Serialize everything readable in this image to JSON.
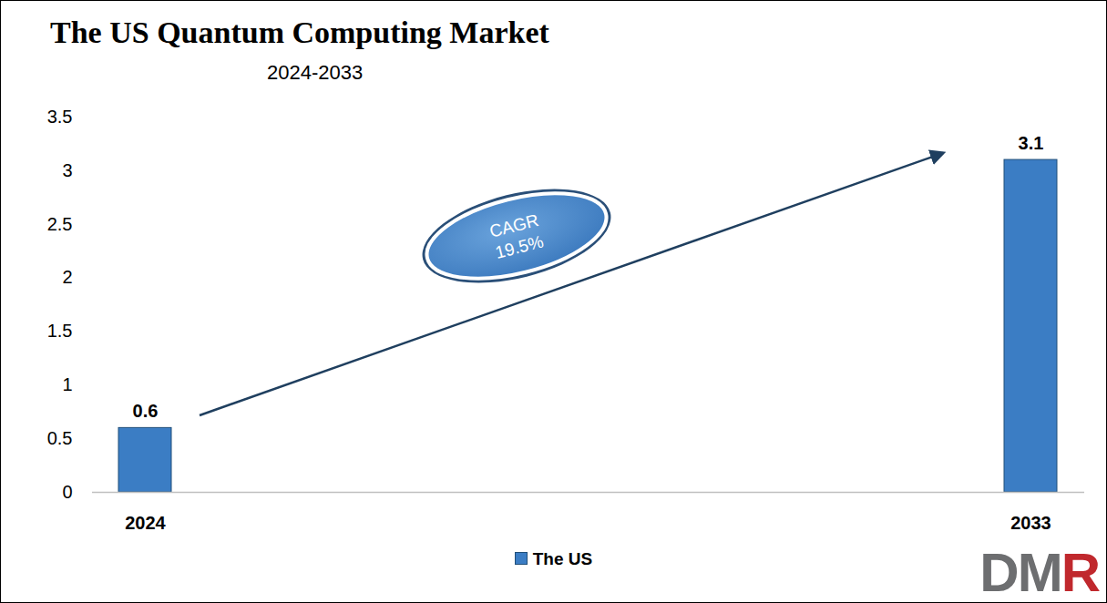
{
  "chart_data": {
    "type": "bar",
    "title": "The US Quantum Computing Market",
    "subtitle": "2024-2033",
    "categories": [
      "2024",
      "2033"
    ],
    "series": [
      {
        "name": "The US",
        "color": "#3b7dc4",
        "values": [
          0.6,
          3.1
        ]
      }
    ],
    "ylim": [
      0,
      3.5
    ],
    "yticks": [
      0,
      0.5,
      1,
      1.5,
      2,
      2.5,
      3,
      3.5
    ],
    "grid": false,
    "data_labels": true,
    "legend": "bottom",
    "annotations": [
      "CAGR 19.5%"
    ],
    "logo": "DMR"
  }
}
